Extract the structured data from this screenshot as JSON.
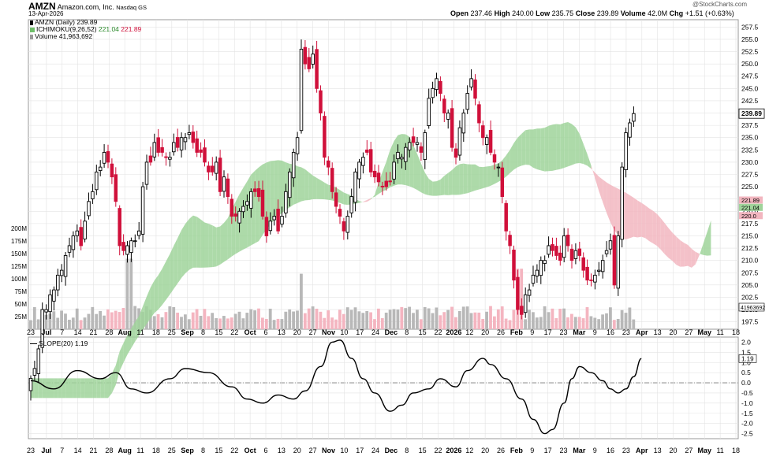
{
  "header": {
    "symbol": "AMZN",
    "company": "Amazon.com, Inc.",
    "exchange": "Nasdaq GS",
    "date": "13-Apr-2026",
    "open_label": "Open",
    "open": "237.46",
    "high_label": "High",
    "high": "240.00",
    "low_label": "Low",
    "low": "235.75",
    "close_label": "Close",
    "close": "239.89",
    "volume_label": "Volume",
    "volume": "42.0M",
    "chg_label": "Chg",
    "chg": "+1.51 (+0.63%)",
    "watermark": "@StockCharts.com",
    "legend_price": "AMZN (Daily) 239.89",
    "legend_ichimoku_name": "ICHIMOKU(9,26,52)",
    "legend_ichimoku_v1": "221.04",
    "legend_ichimoku_v2": "221.89",
    "legend_volume": "Volume 41,963,692",
    "slope_legend": "SLOPE(20) 1.19"
  },
  "colors": {
    "up": "#000000",
    "down": "#d0103a",
    "cloud_green": "#9fd39a",
    "cloud_red": "#f2b6bf",
    "vol_grey": "#b8b8b8",
    "vol_pink": "#f4b5c0",
    "grid": "#e3e3e3"
  },
  "chart_data": [
    {
      "type": "candlestick",
      "title": "AMZN (Daily) 239.89",
      "price_ticks": [
        "257.5",
        "255.0",
        "252.5",
        "250.0",
        "247.5",
        "245.0",
        "242.5",
        "240.0",
        "237.5",
        "235.0",
        "232.5",
        "230.0",
        "227.5",
        "225.0",
        "222.5",
        "220.0",
        "217.5",
        "215.0",
        "212.5",
        "210.0",
        "207.5",
        "205.0",
        "202.5",
        "200.0",
        "197.5"
      ],
      "ylim": [
        196,
        259
      ],
      "last_price_label": "239.89",
      "ichimoku_labels": [
        "221.89",
        "221.04",
        "220.0"
      ],
      "volume_ticks": [
        "200M",
        "175M",
        "150M",
        "125M",
        "100M",
        "75M",
        "50M",
        "25M"
      ],
      "volume_last_label": "41963692",
      "x_ticks": [
        "23",
        "Jul",
        "7",
        "14",
        "21",
        "28",
        "Aug",
        "11",
        "18",
        "25",
        "Sep",
        "8",
        "15",
        "22",
        "Oct",
        "6",
        "13",
        "20",
        "27",
        "Nov",
        "10",
        "17",
        "24",
        "Dec",
        "8",
        "15",
        "22",
        "2026",
        "12",
        "20",
        "26",
        "Feb",
        "9",
        "17",
        "23",
        "Mar",
        "9",
        "16",
        "23",
        "Apr",
        "13",
        "20",
        "27",
        "May",
        "11",
        "18"
      ],
      "x_ticks_bold": [
        "Jul",
        "Aug",
        "Sep",
        "Oct",
        "Nov",
        "Dec",
        "2026",
        "Feb",
        "Mar",
        "Apr",
        "May"
      ],
      "closes": [
        186,
        188,
        192,
        200,
        200,
        203,
        204,
        207,
        208,
        211,
        213,
        215,
        216,
        213,
        218,
        222,
        224,
        228,
        229,
        232,
        230,
        227,
        222,
        213,
        212,
        213,
        214,
        214,
        216,
        225,
        230,
        230,
        234,
        232,
        232,
        231,
        231,
        234,
        233,
        235,
        235,
        236,
        234,
        232,
        232,
        230,
        228,
        228,
        230,
        224,
        227,
        223,
        219,
        219,
        220,
        221,
        222,
        224,
        224,
        223,
        219,
        215,
        218,
        219,
        216,
        219,
        224,
        228,
        232,
        235,
        253,
        250,
        249,
        252,
        245,
        240,
        231,
        229,
        224,
        221,
        219,
        216,
        219,
        223,
        228,
        230,
        231,
        232,
        228,
        227,
        226,
        225,
        225,
        226,
        230,
        232,
        231,
        233,
        234,
        234,
        234,
        232,
        236,
        243,
        245,
        247,
        244,
        240,
        240,
        233,
        231,
        237,
        240,
        244,
        247,
        243,
        238,
        235,
        235,
        232,
        230,
        229,
        223,
        216,
        213,
        206,
        200,
        199,
        203,
        204,
        207,
        208,
        210,
        210,
        213,
        212,
        211,
        210,
        215,
        213,
        210,
        212,
        211,
        208,
        206,
        206,
        207,
        208,
        210,
        212,
        214,
        205,
        215,
        229,
        236,
        238,
        239.89
      ]
    },
    {
      "type": "line",
      "title": "SLOPE(20) 1.19",
      "ticks": [
        "2.0",
        "1.5",
        "1.0",
        "0.5",
        "0.0",
        "-0.5",
        "-1.0",
        "-1.5",
        "-2.0",
        "-2.5"
      ],
      "ylim": [
        -2.75,
        2.25
      ],
      "zero_line": 0,
      "last_label": "1.19",
      "knots": [
        [
          0,
          0.1
        ],
        [
          6,
          -0.3
        ],
        [
          12,
          0.6
        ],
        [
          18,
          0.2
        ],
        [
          22,
          0.5
        ],
        [
          26,
          -0.3
        ],
        [
          30,
          -0.5
        ],
        [
          36,
          0.2
        ],
        [
          40,
          0.7
        ],
        [
          46,
          0.5
        ],
        [
          52,
          -0.2
        ],
        [
          56,
          -0.8
        ],
        [
          60,
          -1.0
        ],
        [
          64,
          -0.6
        ],
        [
          68,
          -0.8
        ],
        [
          71,
          -0.4
        ],
        [
          75,
          0.8
        ],
        [
          78,
          2.0
        ],
        [
          80,
          2.1
        ],
        [
          83,
          1.2
        ],
        [
          86,
          0.2
        ],
        [
          89,
          -0.5
        ],
        [
          93,
          -1.4
        ],
        [
          96,
          -1.1
        ],
        [
          99,
          -0.5
        ],
        [
          103,
          -0.3
        ],
        [
          106,
          0.2
        ],
        [
          110,
          -0.2
        ],
        [
          113,
          0.6
        ],
        [
          117,
          1.2
        ],
        [
          119,
          0.9
        ],
        [
          123,
          0.2
        ],
        [
          127,
          -0.8
        ],
        [
          130,
          -1.8
        ],
        [
          133,
          -2.5
        ],
        [
          135,
          -2.3
        ],
        [
          138,
          -1.0
        ],
        [
          140,
          0.2
        ],
        [
          142,
          0.8
        ],
        [
          145,
          0.5
        ],
        [
          148,
          0.1
        ],
        [
          150,
          -0.3
        ],
        [
          152,
          -0.5
        ],
        [
          154,
          -0.3
        ],
        [
          156,
          0.3
        ],
        [
          158,
          1.19
        ]
      ]
    }
  ]
}
